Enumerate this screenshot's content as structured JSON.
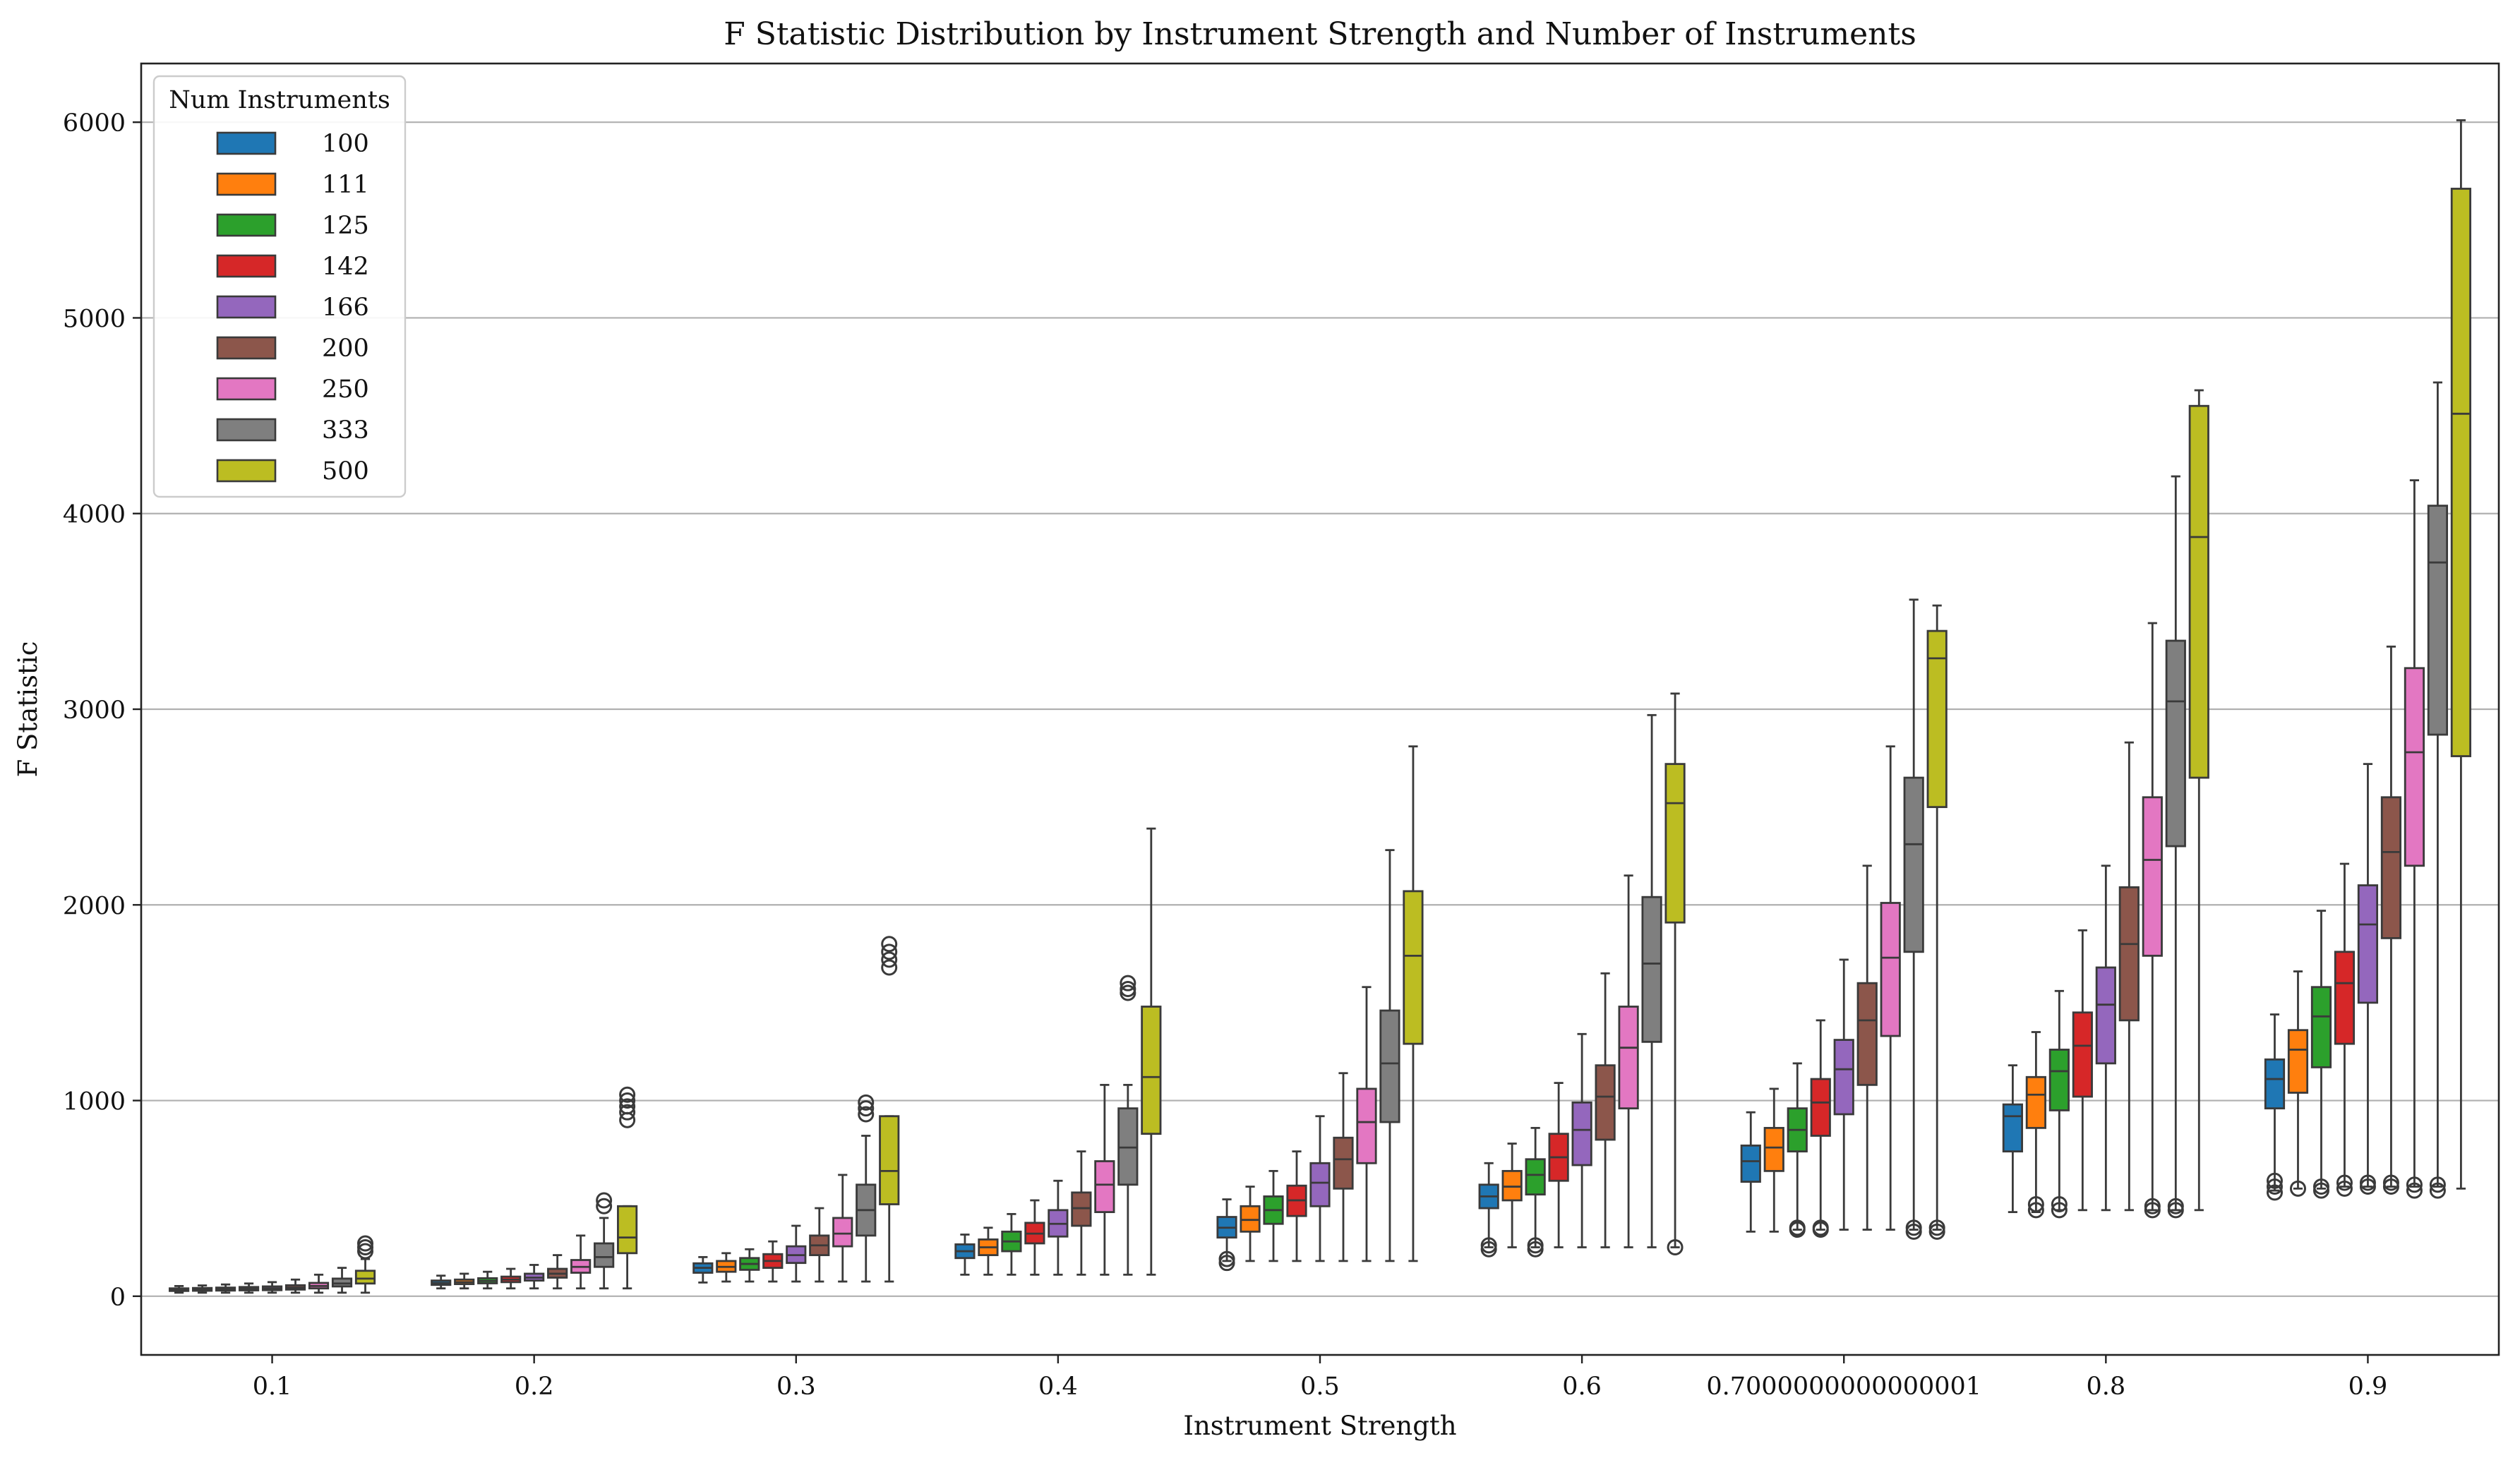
{
  "chart_data": {
    "type": "box",
    "title": "F Statistic Distribution by Instrument Strength and Number of Instruments",
    "xlabel": "Instrument Strength",
    "ylabel": "F Statistic",
    "ylim": [
      -300,
      6300
    ],
    "yticks": [
      0,
      1000,
      2000,
      3000,
      4000,
      5000,
      6000
    ],
    "grid": "horizontal",
    "legend": {
      "title": "Num Instruments",
      "position": "top-left"
    },
    "categories": [
      "0.1",
      "0.2",
      "0.3",
      "0.4",
      "0.5",
      "0.6",
      "0.7000000000000001",
      "0.8",
      "0.9"
    ],
    "series": [
      {
        "name": "100",
        "color": "#1f77b4",
        "boxes": [
          {
            "whislo": 18,
            "q1": 27,
            "med": 34,
            "q3": 40,
            "whishi": 52,
            "fliers": []
          },
          {
            "whislo": 40,
            "q1": 58,
            "med": 68,
            "q3": 80,
            "whishi": 105,
            "fliers": []
          },
          {
            "whislo": 70,
            "q1": 120,
            "med": 145,
            "q3": 168,
            "whishi": 200,
            "fliers": []
          },
          {
            "whislo": 110,
            "q1": 195,
            "med": 230,
            "q3": 265,
            "whishi": 315,
            "fliers": []
          },
          {
            "whislo": 180,
            "q1": 300,
            "med": 350,
            "q3": 405,
            "whishi": 495,
            "fliers": [
              170,
              190
            ]
          },
          {
            "whislo": 250,
            "q1": 450,
            "med": 510,
            "q3": 570,
            "whishi": 680,
            "fliers": [
              240,
              260
            ]
          },
          {
            "whislo": 330,
            "q1": 585,
            "med": 690,
            "q3": 770,
            "whishi": 940,
            "fliers": []
          },
          {
            "whislo": 430,
            "q1": 740,
            "med": 920,
            "q3": 980,
            "whishi": 1180,
            "fliers": []
          },
          {
            "whislo": 540,
            "q1": 960,
            "med": 1110,
            "q3": 1210,
            "whishi": 1440,
            "fliers": [
              530,
              560,
              590
            ]
          }
        ]
      },
      {
        "name": "111",
        "color": "#ff7f0e",
        "boxes": [
          {
            "whislo": 18,
            "q1": 28,
            "med": 35,
            "q3": 42,
            "whishi": 55,
            "fliers": []
          },
          {
            "whislo": 40,
            "q1": 62,
            "med": 72,
            "q3": 85,
            "whishi": 115,
            "fliers": []
          },
          {
            "whislo": 75,
            "q1": 125,
            "med": 150,
            "q3": 180,
            "whishi": 220,
            "fliers": []
          },
          {
            "whislo": 110,
            "q1": 210,
            "med": 250,
            "q3": 290,
            "whishi": 350,
            "fliers": []
          },
          {
            "whislo": 180,
            "q1": 330,
            "med": 390,
            "q3": 460,
            "whishi": 560,
            "fliers": []
          },
          {
            "whislo": 250,
            "q1": 490,
            "med": 560,
            "q3": 640,
            "whishi": 780,
            "fliers": []
          },
          {
            "whislo": 330,
            "q1": 640,
            "med": 760,
            "q3": 860,
            "whishi": 1060,
            "fliers": []
          },
          {
            "whislo": 430,
            "q1": 860,
            "med": 1030,
            "q3": 1120,
            "whishi": 1350,
            "fliers": [
              440,
              470
            ]
          },
          {
            "whislo": 550,
            "q1": 1040,
            "med": 1260,
            "q3": 1360,
            "whishi": 1660,
            "fliers": [
              550
            ]
          }
        ]
      },
      {
        "name": "125",
        "color": "#2ca02c",
        "boxes": [
          {
            "whislo": 18,
            "q1": 29,
            "med": 36,
            "q3": 44,
            "whishi": 60,
            "fliers": []
          },
          {
            "whislo": 40,
            "q1": 66,
            "med": 78,
            "q3": 92,
            "whishi": 125,
            "fliers": []
          },
          {
            "whislo": 75,
            "q1": 135,
            "med": 165,
            "q3": 195,
            "whishi": 240,
            "fliers": []
          },
          {
            "whislo": 110,
            "q1": 230,
            "med": 280,
            "q3": 330,
            "whishi": 420,
            "fliers": []
          },
          {
            "whislo": 180,
            "q1": 370,
            "med": 440,
            "q3": 510,
            "whishi": 640,
            "fliers": []
          },
          {
            "whislo": 250,
            "q1": 520,
            "med": 620,
            "q3": 700,
            "whishi": 860,
            "fliers": [
              240,
              260
            ]
          },
          {
            "whislo": 340,
            "q1": 740,
            "med": 850,
            "q3": 960,
            "whishi": 1190,
            "fliers": [
              340,
              350
            ]
          },
          {
            "whislo": 440,
            "q1": 950,
            "med": 1150,
            "q3": 1260,
            "whishi": 1560,
            "fliers": [
              440,
              470
            ]
          },
          {
            "whislo": 550,
            "q1": 1170,
            "med": 1430,
            "q3": 1580,
            "whishi": 1970,
            "fliers": [
              540,
              560
            ]
          }
        ]
      },
      {
        "name": "142",
        "color": "#d62728",
        "boxes": [
          {
            "whislo": 18,
            "q1": 30,
            "med": 38,
            "q3": 47,
            "whishi": 65,
            "fliers": []
          },
          {
            "whislo": 40,
            "q1": 72,
            "med": 85,
            "q3": 100,
            "whishi": 140,
            "fliers": []
          },
          {
            "whislo": 75,
            "q1": 145,
            "med": 180,
            "q3": 215,
            "whishi": 280,
            "fliers": []
          },
          {
            "whislo": 110,
            "q1": 270,
            "med": 320,
            "q3": 375,
            "whishi": 490,
            "fliers": []
          },
          {
            "whislo": 180,
            "q1": 410,
            "med": 490,
            "q3": 565,
            "whishi": 740,
            "fliers": []
          },
          {
            "whislo": 250,
            "q1": 590,
            "med": 710,
            "q3": 830,
            "whishi": 1090,
            "fliers": []
          },
          {
            "whislo": 340,
            "q1": 820,
            "med": 990,
            "q3": 1110,
            "whishi": 1410,
            "fliers": [
              340,
              350
            ]
          },
          {
            "whislo": 440,
            "q1": 1020,
            "med": 1280,
            "q3": 1450,
            "whishi": 1870,
            "fliers": []
          },
          {
            "whislo": 560,
            "q1": 1290,
            "med": 1600,
            "q3": 1760,
            "whishi": 2210,
            "fliers": [
              550,
              580
            ]
          }
        ]
      },
      {
        "name": "166",
        "color": "#9467bd",
        "boxes": [
          {
            "whislo": 18,
            "q1": 31,
            "med": 40,
            "q3": 50,
            "whishi": 72,
            "fliers": []
          },
          {
            "whislo": 40,
            "q1": 80,
            "med": 95,
            "q3": 115,
            "whishi": 160,
            "fliers": []
          },
          {
            "whislo": 75,
            "q1": 170,
            "med": 210,
            "q3": 255,
            "whishi": 360,
            "fliers": []
          },
          {
            "whislo": 110,
            "q1": 305,
            "med": 370,
            "q3": 440,
            "whishi": 590,
            "fliers": []
          },
          {
            "whislo": 180,
            "q1": 460,
            "med": 580,
            "q3": 680,
            "whishi": 920,
            "fliers": []
          },
          {
            "whislo": 250,
            "q1": 670,
            "med": 850,
            "q3": 990,
            "whishi": 1340,
            "fliers": []
          },
          {
            "whislo": 340,
            "q1": 930,
            "med": 1160,
            "q3": 1310,
            "whishi": 1720,
            "fliers": []
          },
          {
            "whislo": 440,
            "q1": 1190,
            "med": 1490,
            "q3": 1680,
            "whishi": 2200,
            "fliers": []
          },
          {
            "whislo": 560,
            "q1": 1500,
            "med": 1900,
            "q3": 2100,
            "whishi": 2720,
            "fliers": [
              560,
              580
            ]
          }
        ]
      },
      {
        "name": "200",
        "color": "#8c564b",
        "boxes": [
          {
            "whislo": 18,
            "q1": 34,
            "med": 44,
            "q3": 56,
            "whishi": 85,
            "fliers": []
          },
          {
            "whislo": 40,
            "q1": 95,
            "med": 115,
            "q3": 140,
            "whishi": 210,
            "fliers": []
          },
          {
            "whislo": 75,
            "q1": 210,
            "med": 260,
            "q3": 310,
            "whishi": 450,
            "fliers": []
          },
          {
            "whislo": 110,
            "q1": 360,
            "med": 450,
            "q3": 530,
            "whishi": 740,
            "fliers": []
          },
          {
            "whislo": 180,
            "q1": 550,
            "med": 700,
            "q3": 810,
            "whishi": 1140,
            "fliers": []
          },
          {
            "whislo": 250,
            "q1": 800,
            "med": 1020,
            "q3": 1180,
            "whishi": 1650,
            "fliers": []
          },
          {
            "whislo": 340,
            "q1": 1080,
            "med": 1410,
            "q3": 1600,
            "whishi": 2200,
            "fliers": []
          },
          {
            "whislo": 440,
            "q1": 1410,
            "med": 1800,
            "q3": 2090,
            "whishi": 2830,
            "fliers": []
          },
          {
            "whislo": 560,
            "q1": 1830,
            "med": 2270,
            "q3": 2550,
            "whishi": 3320,
            "fliers": [
              560,
              580
            ]
          }
        ]
      },
      {
        "name": "250",
        "color": "#e377c2",
        "boxes": [
          {
            "whislo": 18,
            "q1": 40,
            "med": 52,
            "q3": 68,
            "whishi": 110,
            "fliers": []
          },
          {
            "whislo": 40,
            "q1": 120,
            "med": 150,
            "q3": 185,
            "whishi": 310,
            "fliers": []
          },
          {
            "whislo": 75,
            "q1": 255,
            "med": 320,
            "q3": 400,
            "whishi": 620,
            "fliers": []
          },
          {
            "whislo": 110,
            "q1": 430,
            "med": 570,
            "q3": 690,
            "whishi": 1080,
            "fliers": []
          },
          {
            "whislo": 180,
            "q1": 680,
            "med": 890,
            "q3": 1060,
            "whishi": 1580,
            "fliers": []
          },
          {
            "whislo": 250,
            "q1": 960,
            "med": 1270,
            "q3": 1480,
            "whishi": 2150,
            "fliers": []
          },
          {
            "whislo": 340,
            "q1": 1330,
            "med": 1730,
            "q3": 2010,
            "whishi": 2810,
            "fliers": []
          },
          {
            "whislo": 440,
            "q1": 1740,
            "med": 2230,
            "q3": 2550,
            "whishi": 3440,
            "fliers": [
              440,
              460
            ]
          },
          {
            "whislo": 560,
            "q1": 2200,
            "med": 2780,
            "q3": 3210,
            "whishi": 4170,
            "fliers": [
              540,
              570
            ]
          }
        ]
      },
      {
        "name": "333",
        "color": "#7f7f7f",
        "boxes": [
          {
            "whislo": 18,
            "q1": 50,
            "med": 65,
            "q3": 90,
            "whishi": 145,
            "fliers": []
          },
          {
            "whislo": 40,
            "q1": 150,
            "med": 200,
            "q3": 270,
            "whishi": 400,
            "fliers": [
              460,
              490
            ]
          },
          {
            "whislo": 75,
            "q1": 310,
            "med": 440,
            "q3": 570,
            "whishi": 820,
            "fliers": [
              930,
              960,
              990
            ]
          },
          {
            "whislo": 110,
            "q1": 570,
            "med": 760,
            "q3": 960,
            "whishi": 1080,
            "fliers": [
              1550,
              1570,
              1600
            ]
          },
          {
            "whislo": 180,
            "q1": 890,
            "med": 1190,
            "q3": 1460,
            "whishi": 2280,
            "fliers": []
          },
          {
            "whislo": 250,
            "q1": 1300,
            "med": 1700,
            "q3": 2040,
            "whishi": 2970,
            "fliers": []
          },
          {
            "whislo": 340,
            "q1": 1760,
            "med": 2310,
            "q3": 2650,
            "whishi": 3560,
            "fliers": [
              330,
              350
            ]
          },
          {
            "whislo": 440,
            "q1": 2300,
            "med": 3040,
            "q3": 3350,
            "whishi": 4190,
            "fliers": [
              440,
              460
            ]
          },
          {
            "whislo": 560,
            "q1": 2870,
            "med": 3750,
            "q3": 4040,
            "whishi": 4670,
            "fliers": [
              540,
              570
            ]
          }
        ]
      },
      {
        "name": "500",
        "color": "#bcbd22",
        "boxes": [
          {
            "whislo": 18,
            "q1": 65,
            "med": 90,
            "q3": 130,
            "whishi": 190,
            "fliers": [
              230,
              250,
              270
            ]
          },
          {
            "whislo": 40,
            "q1": 220,
            "med": 300,
            "q3": 460,
            "whishi": 460,
            "fliers": [
              900,
              940,
              970,
              1000,
              1030
            ]
          },
          {
            "whislo": 75,
            "q1": 470,
            "med": 640,
            "q3": 920,
            "whishi": 920,
            "fliers": [
              1680,
              1720,
              1760,
              1800
            ]
          },
          {
            "whislo": 110,
            "q1": 830,
            "med": 1120,
            "q3": 1480,
            "whishi": 2390,
            "fliers": []
          },
          {
            "whislo": 180,
            "q1": 1290,
            "med": 1740,
            "q3": 2070,
            "whishi": 2810,
            "fliers": []
          },
          {
            "whislo": 250,
            "q1": 1910,
            "med": 2520,
            "q3": 2720,
            "whishi": 3080,
            "fliers": [
              250
            ]
          },
          {
            "whislo": 340,
            "q1": 2500,
            "med": 3260,
            "q3": 3400,
            "whishi": 3530,
            "fliers": [
              330,
              350
            ]
          },
          {
            "whislo": 440,
            "q1": 2650,
            "med": 3880,
            "q3": 4550,
            "whishi": 4630,
            "fliers": []
          },
          {
            "whislo": 550,
            "q1": 2760,
            "med": 4510,
            "q3": 5660,
            "whishi": 6010,
            "fliers": []
          }
        ]
      }
    ]
  }
}
